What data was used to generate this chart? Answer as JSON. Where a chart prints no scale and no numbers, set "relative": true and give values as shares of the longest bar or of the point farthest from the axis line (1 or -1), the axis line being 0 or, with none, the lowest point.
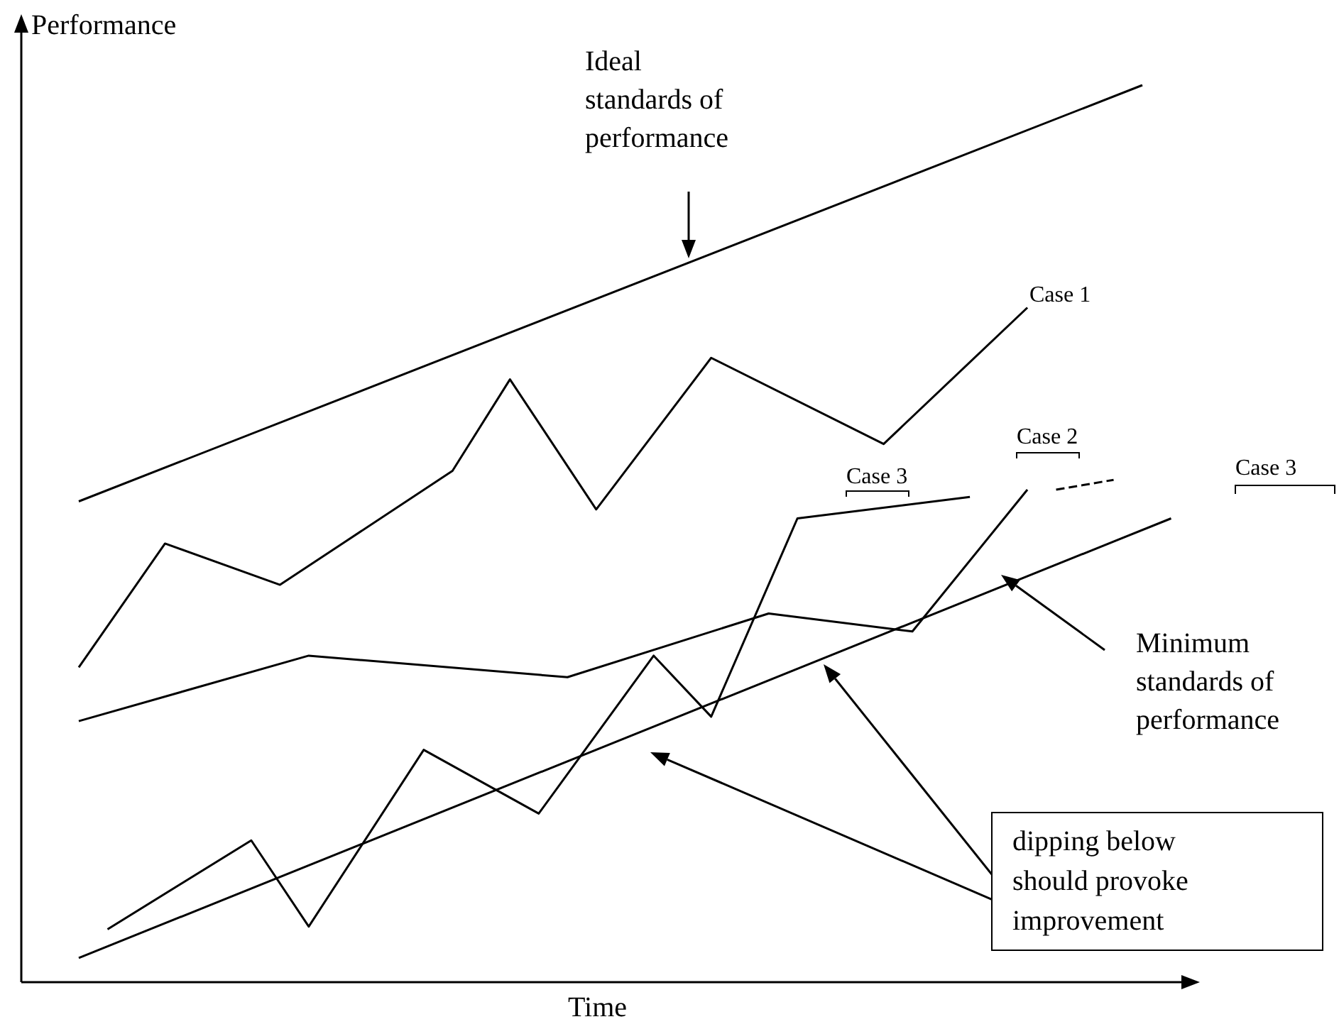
{
  "chart_data": {
    "type": "line",
    "relative": true,
    "xlabel": "Time",
    "ylabel": "Performance",
    "legend": false,
    "grid": false,
    "marker": "none",
    "categories": [
      null,
      null,
      null,
      null,
      null,
      null,
      null,
      null,
      null,
      null,
      null,
      null,
      null,
      null,
      null,
      null,
      null,
      null,
      null,
      null,
      null,
      null,
      null,
      null,
      null,
      null,
      null,
      null,
      null,
      null,
      null,
      null,
      null,
      null,
      null,
      null,
      null,
      null,
      null,
      null,
      null,
      null
    ],
    "series": [
      {
        "color": "#000000",
        "values": [
          null,
          null,
          0.536,
          null,
          null,
          null,
          null,
          null,
          null,
          null,
          null,
          null,
          null,
          null,
          null,
          null,
          null,
          null,
          null,
          null,
          null,
          null,
          null,
          null,
          null,
          null,
          null,
          null,
          null,
          null,
          null,
          null,
          null,
          null,
          null,
          null,
          null,
          null,
          null,
          1,
          null,
          null
        ]
      },
      {
        "name": "Case 1",
        "color": "#000000",
        "values": [
          null,
          null,
          0.351,
          null,
          null,
          0.489,
          null,
          null,
          null,
          0.443,
          null,
          null,
          null,
          null,
          null,
          0.57,
          null,
          0.672,
          null,
          null,
          0.527,
          null,
          null,
          null,
          0.696,
          null,
          null,
          null,
          null,
          null,
          0.6,
          null,
          null,
          null,
          null,
          0.752,
          null,
          null,
          null,
          null,
          null,
          null
        ]
      },
      {
        "name": "Case 2",
        "color": "#000000",
        "values": [
          null,
          null,
          0.291,
          null,
          null,
          null,
          null,
          null,
          null,
          null,
          0.364,
          null,
          null,
          null,
          null,
          null,
          null,
          null,
          null,
          0.34,
          null,
          null,
          null,
          null,
          null,
          null,
          0.411,
          null,
          null,
          null,
          null,
          0.391,
          null,
          null,
          null,
          0.549,
          null,
          null,
          null,
          null,
          null,
          null
        ]
      },
      {
        "name": "Case 3",
        "color": "#000000",
        "values": [
          null,
          null,
          null,
          0.059,
          null,
          null,
          null,
          null,
          0.158,
          null,
          0.062,
          null,
          null,
          null,
          0.259,
          null,
          null,
          null,
          0.188,
          null,
          null,
          null,
          0.364,
          null,
          0.296,
          null,
          null,
          0.517,
          null,
          null,
          null,
          null,
          null,
          0.541,
          null,
          null,
          null,
          null,
          null,
          null,
          null,
          null
        ]
      },
      {
        "color": "#000000",
        "line_style": "dashed",
        "values": [
          null,
          null,
          null,
          null,
          null,
          null,
          null,
          null,
          null,
          null,
          null,
          null,
          null,
          null,
          null,
          null,
          null,
          null,
          null,
          null,
          null,
          null,
          null,
          null,
          null,
          null,
          null,
          null,
          null,
          null,
          null,
          null,
          null,
          null,
          null,
          null,
          0.549,
          null,
          0.56,
          null,
          null,
          null
        ]
      },
      {
        "color": "#000000",
        "values": [
          null,
          null,
          0.027,
          null,
          null,
          null,
          null,
          null,
          null,
          null,
          null,
          null,
          null,
          null,
          null,
          null,
          null,
          null,
          null,
          null,
          null,
          null,
          null,
          null,
          null,
          null,
          null,
          null,
          null,
          null,
          null,
          null,
          null,
          null,
          null,
          null,
          null,
          null,
          null,
          null,
          0.517,
          null
        ]
      }
    ],
    "annotations": [
      "Ideal standards of performance",
      "Minimum standards of performance",
      "dipping below should provoke improvement",
      "Case 3"
    ]
  }
}
